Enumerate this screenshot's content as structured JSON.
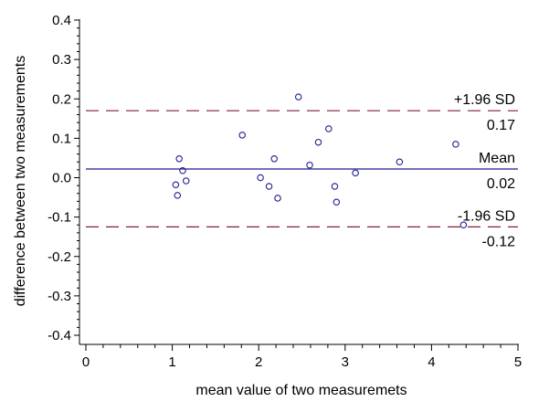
{
  "chart_data": {
    "type": "scatter",
    "title": "",
    "xlabel": "mean value of two measuremets",
    "ylabel": "difference between two measurements",
    "xlim": [
      0,
      5
    ],
    "ylim": [
      -0.4,
      0.4
    ],
    "x_ticks": [
      "0",
      "1",
      "2",
      "3",
      "4",
      "5"
    ],
    "y_ticks": [
      "0.4",
      "0.3",
      "0.2",
      "0.1",
      "0.0",
      "-0.1",
      "-0.2",
      "-0.3",
      "-0.4"
    ],
    "grid": false,
    "points": [
      {
        "x": 1.04,
        "y": -0.018
      },
      {
        "x": 1.06,
        "y": -0.045
      },
      {
        "x": 1.08,
        "y": 0.048
      },
      {
        "x": 1.12,
        "y": 0.018
      },
      {
        "x": 1.16,
        "y": -0.008
      },
      {
        "x": 1.81,
        "y": 0.108
      },
      {
        "x": 2.02,
        "y": 0.0
      },
      {
        "x": 2.12,
        "y": -0.022
      },
      {
        "x": 2.18,
        "y": 0.048
      },
      {
        "x": 2.22,
        "y": -0.052
      },
      {
        "x": 2.46,
        "y": 0.205
      },
      {
        "x": 2.59,
        "y": 0.032
      },
      {
        "x": 2.69,
        "y": 0.09
      },
      {
        "x": 2.81,
        "y": 0.124
      },
      {
        "x": 2.88,
        "y": -0.022
      },
      {
        "x": 2.9,
        "y": -0.062
      },
      {
        "x": 3.12,
        "y": 0.012
      },
      {
        "x": 3.63,
        "y": 0.04
      },
      {
        "x": 4.28,
        "y": 0.085
      },
      {
        "x": 4.37,
        "y": -0.12
      }
    ],
    "reference_lines": [
      {
        "label": "+1.96 SD",
        "value_label": "0.17",
        "y": 0.17,
        "style": "dashed",
        "color": "#7f1f3f"
      },
      {
        "label": "Mean",
        "value_label": "0.02",
        "y": 0.022,
        "style": "solid",
        "color": "#1f1f8f"
      },
      {
        "label": "-1.96 SD",
        "value_label": "-0.12",
        "y": -0.125,
        "style": "dashed",
        "color": "#7f1f3f"
      }
    ],
    "point_color": "#1f1f8f"
  }
}
